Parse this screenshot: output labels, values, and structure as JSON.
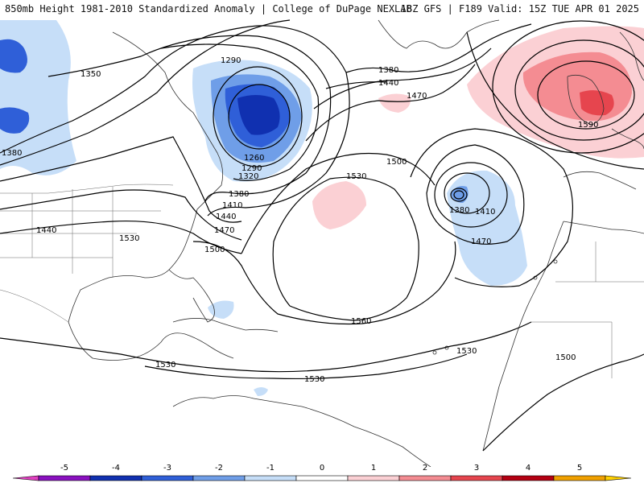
{
  "header": {
    "title_left": "850mb Height 1981-2010 Standardized Anomaly | College of DuPage NEXLAB",
    "title_right": "18Z GFS | F189 Valid: 15Z TUE APR 01 2025"
  },
  "contour_labels": [
    {
      "id": "l1290a",
      "text": "1290"
    },
    {
      "id": "l1350",
      "text": "1350"
    },
    {
      "id": "l1380w",
      "text": "1380"
    },
    {
      "id": "l1380n",
      "text": "1380"
    },
    {
      "id": "l1440n",
      "text": "1440"
    },
    {
      "id": "l1470n",
      "text": "1470"
    },
    {
      "id": "l1590",
      "text": "1590"
    },
    {
      "id": "l1260",
      "text": "1260"
    },
    {
      "id": "l1290b",
      "text": "1290"
    },
    {
      "id": "l1320",
      "text": "1320"
    },
    {
      "id": "l1380c",
      "text": "1380"
    },
    {
      "id": "l1410c",
      "text": "1410"
    },
    {
      "id": "l1440c",
      "text": "1440"
    },
    {
      "id": "l1470c",
      "text": "1470"
    },
    {
      "id": "l1500c",
      "text": "1500"
    },
    {
      "id": "l1500m",
      "text": "1500"
    },
    {
      "id": "l1530m",
      "text": "1530"
    },
    {
      "id": "l1380e",
      "text": "1380"
    },
    {
      "id": "l1410e",
      "text": "1410"
    },
    {
      "id": "l1470e",
      "text": "1470"
    },
    {
      "id": "l1440w",
      "text": "1440"
    },
    {
      "id": "l1530w",
      "text": "1530"
    },
    {
      "id": "l1560",
      "text": "1560"
    },
    {
      "id": "l1530s",
      "text": "1530"
    },
    {
      "id": "l1530car",
      "text": "1530"
    },
    {
      "id": "l1530b",
      "text": "1530"
    },
    {
      "id": "l1500afr",
      "text": "1500"
    }
  ],
  "colorbar": {
    "ticks": [
      "-5",
      "-4",
      "-3",
      "-2",
      "-1",
      "0",
      "1",
      "2",
      "3",
      "4",
      "5"
    ],
    "colors": [
      "#e040c0",
      "#8a10c0",
      "#1030b0",
      "#2f5fd8",
      "#6f9ee8",
      "#c6def8",
      "#ffffff",
      "#fbd0d4",
      "#f48c92",
      "#e6454e",
      "#b40012",
      "#f0a000",
      "#ffd000"
    ]
  }
}
